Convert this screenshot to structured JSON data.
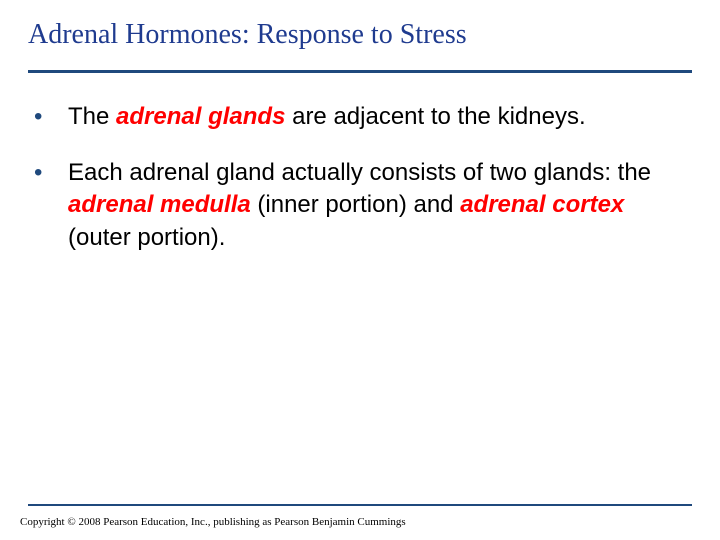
{
  "title": {
    "text": "Adrenal Hormones: Response to Stress",
    "color": "#1f3b8f"
  },
  "divider": {
    "color": "#1f497d"
  },
  "bullets": {
    "bullet_color": "#1f497d",
    "text_color": "#000000",
    "term_color": "#ff0000",
    "items": [
      {
        "segments": [
          {
            "text": "The ",
            "term": false
          },
          {
            "text": "adrenal glands",
            "term": true
          },
          {
            "text": " are adjacent to the kidneys.",
            "term": false
          }
        ]
      },
      {
        "segments": [
          {
            "text": "Each adrenal gland actually consists of two glands: the ",
            "term": false
          },
          {
            "text": "adrenal medulla",
            "term": true
          },
          {
            "text": " (inner portion) and ",
            "term": false
          },
          {
            "text": "adrenal cortex",
            "term": true
          },
          {
            "text": " (outer portion).",
            "term": false
          }
        ]
      }
    ]
  },
  "footer": {
    "line_color": "#1f497d",
    "copyright": "Copyright © 2008 Pearson Education, Inc., publishing as Pearson Benjamin Cummings"
  }
}
